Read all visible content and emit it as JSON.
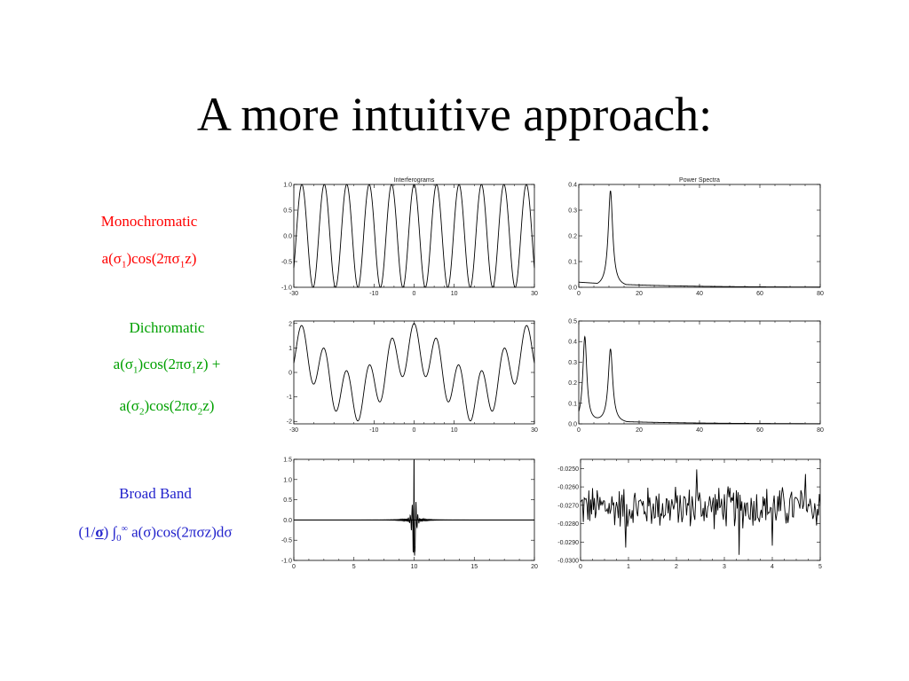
{
  "slide": {
    "title": "A more intuitive approach:"
  },
  "labels": {
    "mono": {
      "line1": "Monochromatic",
      "line2": "a(σ₁)cos(2πσ₁z)",
      "color": "#ff0000"
    },
    "dichro": {
      "line1": "Dichromatic",
      "line2": "a(σ₁)cos(2πσ₁z) +",
      "line3": "a(σ₂)cos(2πσ₂z)",
      "color": "#00a000"
    },
    "broad": {
      "line1": "Broad Band",
      "line2": "(1/σ) ∫₀^∞ a(σ)cos(2πσz)dσ",
      "color": "#2222cc"
    }
  },
  "chart_data": [
    {
      "type": "line",
      "title": "Interferograms",
      "xlim": [
        -30,
        30
      ],
      "ylim": [
        -1.0,
        1.0
      ],
      "xticks": [
        "-30",
        "-10",
        "0",
        "10",
        "30"
      ],
      "xtick_values": [
        -30,
        -10,
        0,
        10,
        30
      ],
      "yticks": [
        "1.0",
        "0.5",
        "0.0",
        "-0.5",
        "-1.0"
      ],
      "ytick_values": [
        1.0,
        0.5,
        0.0,
        -0.5,
        -1.0
      ],
      "function": "cos",
      "series": [
        {
          "components": [
            {
              "amplitude": 1.0,
              "period": 5.6
            }
          ]
        }
      ]
    },
    {
      "type": "line",
      "title": "Power Spectra",
      "xlim": [
        0,
        80
      ],
      "ylim": [
        0,
        0.4
      ],
      "xticks": [
        "0",
        "20",
        "40",
        "60",
        "80"
      ],
      "xtick_values": [
        0,
        20,
        40,
        60,
        80
      ],
      "yticks": [
        "0.4",
        "0.3",
        "0.2",
        "0.1",
        "0.0"
      ],
      "ytick_values": [
        0.4,
        0.3,
        0.2,
        0.1,
        0.0
      ],
      "function": "peaks",
      "baseline": 0.02,
      "series": [
        {
          "peaks": [
            {
              "position": 10.5,
              "height": 0.375,
              "width": 0.9
            }
          ]
        }
      ]
    },
    {
      "type": "line",
      "title": "",
      "xlim": [
        -30,
        30
      ],
      "ylim": [
        -2.1,
        2.1
      ],
      "xticks": [
        "-30",
        "-10",
        "0",
        "10",
        "30"
      ],
      "xtick_values": [
        -30,
        -10,
        0,
        10,
        30
      ],
      "yticks": [
        "2",
        "1",
        "0",
        "-1",
        "-2"
      ],
      "ytick_values": [
        2,
        1,
        0,
        -1,
        -2
      ],
      "function": "cos",
      "series": [
        {
          "components": [
            {
              "amplitude": 1.0,
              "period": 5.6
            },
            {
              "amplitude": 1.0,
              "period": 30
            }
          ]
        }
      ]
    },
    {
      "type": "line",
      "title": "",
      "xlim": [
        0,
        80
      ],
      "ylim": [
        0,
        0.5
      ],
      "xticks": [
        "0",
        "20",
        "40",
        "60",
        "80"
      ],
      "xtick_values": [
        0,
        20,
        40,
        60,
        80
      ],
      "yticks": [
        "0.5",
        "0.4",
        "0.3",
        "0.2",
        "0.1",
        "0.0"
      ],
      "ytick_values": [
        0.5,
        0.4,
        0.3,
        0.2,
        0.1,
        0.0
      ],
      "function": "peaks",
      "baseline": 0.02,
      "series": [
        {
          "peaks": [
            {
              "position": 2.0,
              "height": 0.42,
              "width": 0.8
            },
            {
              "position": 10.5,
              "height": 0.36,
              "width": 0.9
            }
          ]
        }
      ]
    },
    {
      "type": "line",
      "title": "",
      "xlim": [
        0,
        20
      ],
      "ylim": [
        -1.0,
        1.5
      ],
      "xticks": [
        "0",
        "5",
        "10",
        "15",
        "20"
      ],
      "xtick_values": [
        0,
        5,
        10,
        15,
        20
      ],
      "yticks": [
        "1.5",
        "1.0",
        "0.5",
        "0.0",
        "-0.5",
        "-1.0"
      ],
      "ytick_values": [
        1.5,
        1.0,
        0.5,
        0.0,
        -0.5,
        -1.0
      ],
      "function": "burst",
      "series": [
        {
          "center": 10,
          "amplitude": 1.5,
          "min": -0.85,
          "decay": 0.12
        }
      ]
    },
    {
      "type": "line",
      "title": "",
      "xlim": [
        0,
        5
      ],
      "ylim": [
        -0.03,
        -0.0245
      ],
      "xticks": [
        "0",
        "1",
        "2",
        "3",
        "4",
        "5"
      ],
      "xtick_values": [
        0,
        1,
        2,
        3,
        4,
        5
      ],
      "yticks": [
        "-0.0250",
        "-0.0260",
        "-0.0270",
        "-0.0280",
        "-0.0290",
        "-0.0300"
      ],
      "ytick_values": [
        -0.025,
        -0.026,
        -0.027,
        -0.028,
        -0.029,
        -0.03
      ],
      "function": "noise",
      "series": [
        {
          "mean": -0.0271,
          "spread": 0.0011,
          "points": 260
        }
      ]
    }
  ]
}
